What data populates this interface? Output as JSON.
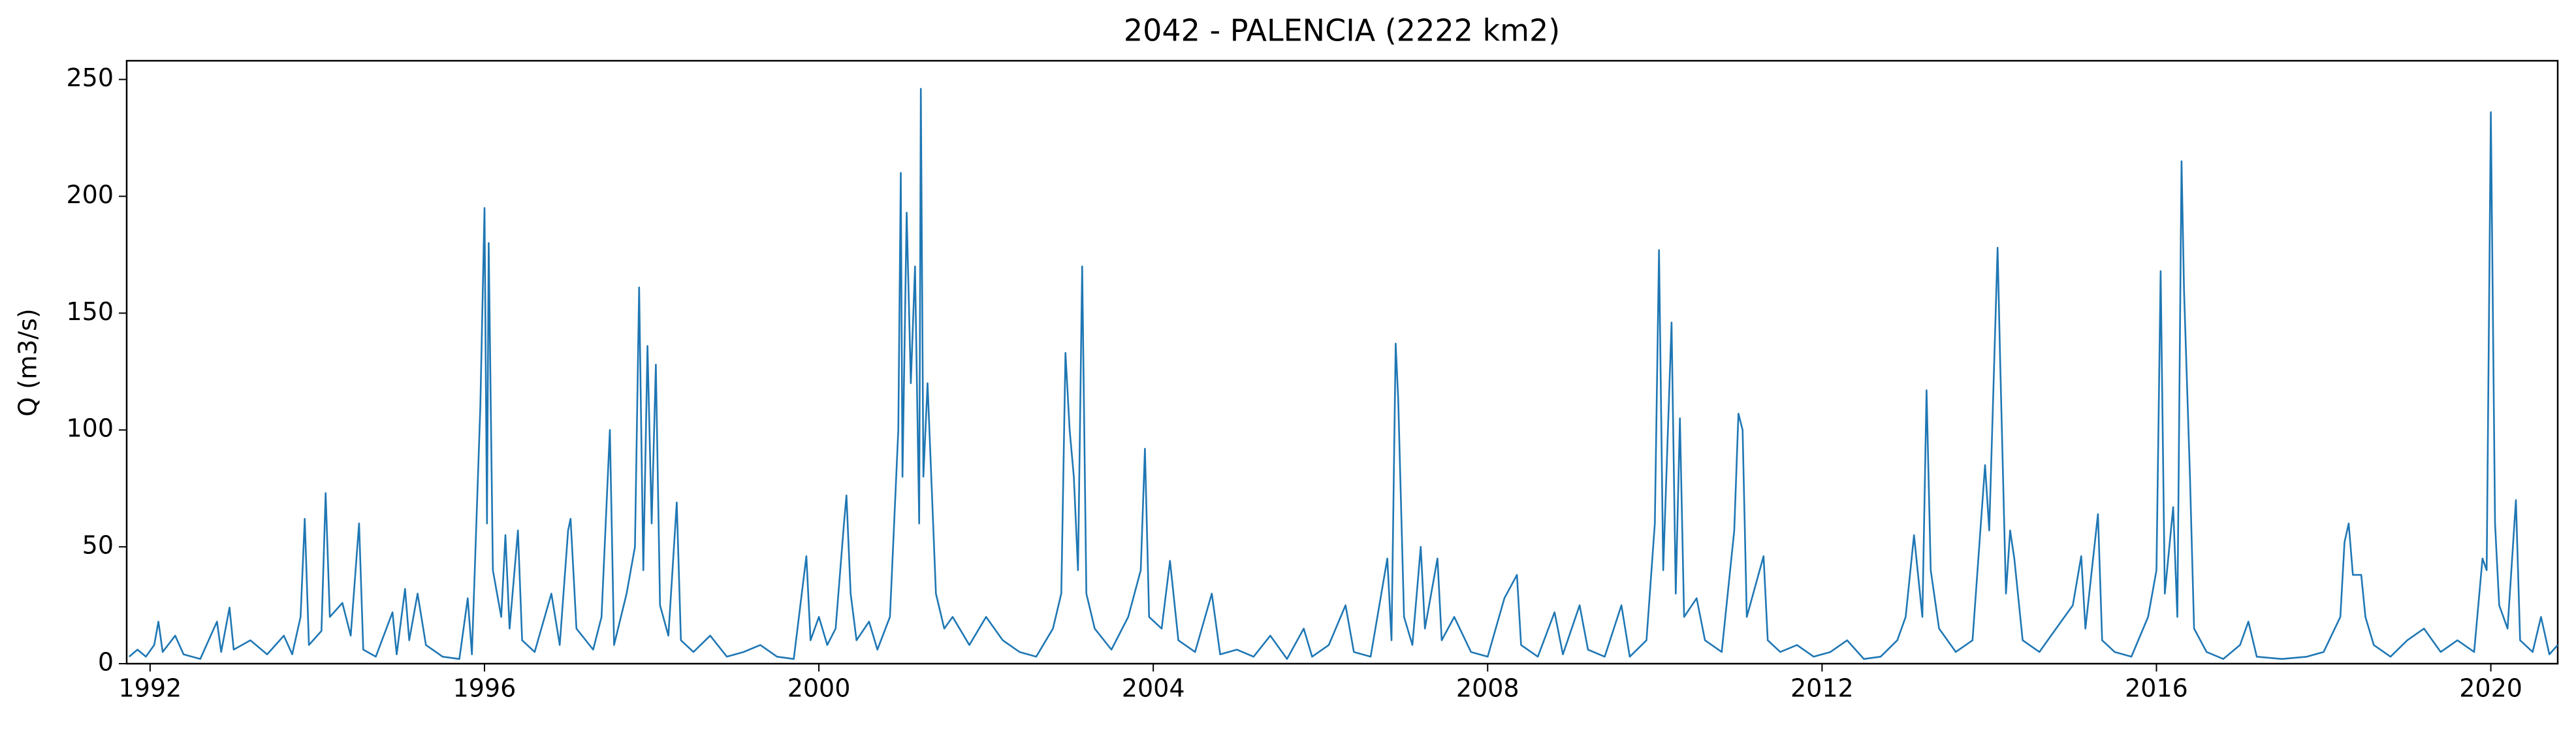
{
  "chart_data": {
    "type": "line",
    "title": "2042 - PALENCIA (2222 km2)",
    "y_label": "Q (m3/s)",
    "color": "#1f77b4",
    "xlim": [
      1991.72,
      2020.8
    ],
    "xticks": [
      1992,
      1996,
      2000,
      2004,
      2008,
      2012,
      2016,
      2020
    ],
    "ylim": [
      0,
      258
    ],
    "yticks": [
      0,
      50,
      100,
      150,
      200,
      250
    ],
    "grid": false,
    "x": [
      1991.75,
      1991.85,
      1991.95,
      1992.05,
      1992.1,
      1992.15,
      1992.3,
      1992.4,
      1992.6,
      1992.8,
      1992.85,
      1992.95,
      1993.0,
      1993.2,
      1993.4,
      1993.6,
      1993.7,
      1993.8,
      1993.85,
      1993.9,
      1994.05,
      1994.1,
      1994.15,
      1994.3,
      1994.4,
      1994.5,
      1994.55,
      1994.7,
      1994.9,
      1994.95,
      1995.05,
      1995.1,
      1995.2,
      1995.3,
      1995.5,
      1995.7,
      1995.8,
      1995.85,
      1995.95,
      1996.0,
      1996.03,
      1996.05,
      1996.1,
      1996.2,
      1996.25,
      1996.3,
      1996.4,
      1996.45,
      1996.6,
      1996.8,
      1996.9,
      1997.0,
      1997.03,
      1997.1,
      1997.3,
      1997.4,
      1997.5,
      1997.55,
      1997.7,
      1997.8,
      1997.85,
      1997.9,
      1997.95,
      1998.0,
      1998.05,
      1998.1,
      1998.2,
      1998.3,
      1998.35,
      1998.5,
      1998.7,
      1998.9,
      1999.1,
      1999.3,
      1999.5,
      1999.7,
      1999.85,
      1999.9,
      2000.0,
      2000.1,
      2000.2,
      2000.3,
      2000.33,
      2000.38,
      2000.45,
      2000.6,
      2000.7,
      2000.85,
      2000.95,
      2000.98,
      2001.0,
      2001.05,
      2001.1,
      2001.15,
      2001.2,
      2001.22,
      2001.25,
      2001.3,
      2001.4,
      2001.5,
      2001.6,
      2001.8,
      2002.0,
      2002.2,
      2002.4,
      2002.6,
      2002.8,
      2002.9,
      2002.95,
      2003.0,
      2003.05,
      2003.1,
      2003.15,
      2003.2,
      2003.3,
      2003.5,
      2003.7,
      2003.85,
      2003.9,
      2003.95,
      2004.1,
      2004.2,
      2004.3,
      2004.5,
      2004.7,
      2004.8,
      2005.0,
      2005.2,
      2005.4,
      2005.6,
      2005.8,
      2005.9,
      2006.1,
      2006.3,
      2006.4,
      2006.6,
      2006.8,
      2006.85,
      2006.9,
      2006.93,
      2007.0,
      2007.1,
      2007.2,
      2007.25,
      2007.4,
      2007.45,
      2007.6,
      2007.8,
      2008.0,
      2008.2,
      2008.35,
      2008.4,
      2008.6,
      2008.8,
      2008.9,
      2009.1,
      2009.2,
      2009.4,
      2009.6,
      2009.7,
      2009.9,
      2010.0,
      2010.05,
      2010.1,
      2010.2,
      2010.25,
      2010.3,
      2010.35,
      2010.5,
      2010.6,
      2010.8,
      2010.95,
      2011.0,
      2011.05,
      2011.1,
      2011.3,
      2011.35,
      2011.5,
      2011.7,
      2011.9,
      2012.1,
      2012.3,
      2012.5,
      2012.7,
      2012.9,
      2013.0,
      2013.1,
      2013.2,
      2013.25,
      2013.3,
      2013.4,
      2013.6,
      2013.8,
      2013.95,
      2014.0,
      2014.1,
      2014.13,
      2014.2,
      2014.25,
      2014.3,
      2014.4,
      2014.6,
      2014.8,
      2015.0,
      2015.1,
      2015.15,
      2015.3,
      2015.35,
      2015.5,
      2015.7,
      2015.9,
      2016.0,
      2016.05,
      2016.1,
      2016.2,
      2016.25,
      2016.3,
      2016.33,
      2016.4,
      2016.45,
      2016.6,
      2016.8,
      2017.0,
      2017.1,
      2017.2,
      2017.5,
      2017.8,
      2018.0,
      2018.2,
      2018.25,
      2018.3,
      2018.35,
      2018.45,
      2018.5,
      2018.6,
      2018.8,
      2019.0,
      2019.2,
      2019.4,
      2019.6,
      2019.8,
      2019.9,
      2019.95,
      2020.0,
      2020.05,
      2020.1,
      2020.2,
      2020.3,
      2020.35,
      2020.5,
      2020.6,
      2020.7,
      2020.8
    ],
    "values": [
      3,
      6,
      3,
      8,
      18,
      5,
      12,
      4,
      2,
      18,
      5,
      24,
      6,
      10,
      4,
      12,
      4,
      20,
      62,
      8,
      14,
      73,
      20,
      26,
      12,
      60,
      6,
      3,
      22,
      4,
      32,
      10,
      30,
      8,
      3,
      2,
      28,
      4,
      110,
      195,
      60,
      180,
      40,
      20,
      55,
      15,
      57,
      10,
      5,
      30,
      8,
      57,
      62,
      15,
      6,
      20,
      100,
      8,
      30,
      50,
      161,
      40,
      136,
      60,
      128,
      25,
      12,
      69,
      10,
      5,
      12,
      3,
      5,
      8,
      3,
      2,
      46,
      10,
      20,
      8,
      15,
      60,
      72,
      30,
      10,
      18,
      6,
      20,
      100,
      210,
      80,
      193,
      120,
      170,
      60,
      246,
      80,
      120,
      30,
      15,
      20,
      8,
      20,
      10,
      5,
      3,
      15,
      30,
      133,
      100,
      80,
      40,
      170,
      30,
      15,
      6,
      20,
      40,
      92,
      20,
      15,
      44,
      10,
      5,
      30,
      4,
      6,
      3,
      12,
      2,
      15,
      3,
      8,
      25,
      5,
      3,
      45,
      10,
      137,
      113,
      20,
      8,
      50,
      15,
      45,
      10,
      20,
      5,
      3,
      28,
      38,
      8,
      3,
      22,
      4,
      25,
      6,
      3,
      25,
      3,
      10,
      60,
      177,
      40,
      146,
      30,
      105,
      20,
      28,
      10,
      5,
      57,
      107,
      100,
      20,
      46,
      10,
      5,
      8,
      3,
      5,
      10,
      2,
      3,
      10,
      20,
      55,
      20,
      117,
      40,
      15,
      5,
      10,
      85,
      57,
      178,
      130,
      30,
      57,
      45,
      10,
      5,
      15,
      25,
      46,
      15,
      64,
      10,
      5,
      3,
      20,
      40,
      168,
      30,
      67,
      20,
      215,
      160,
      81,
      15,
      5,
      2,
      8,
      18,
      3,
      2,
      3,
      5,
      20,
      52,
      60,
      38,
      38,
      20,
      8,
      3,
      10,
      15,
      5,
      10,
      5,
      45,
      40,
      236,
      60,
      25,
      15,
      70,
      10,
      5,
      20,
      4,
      8
    ]
  }
}
